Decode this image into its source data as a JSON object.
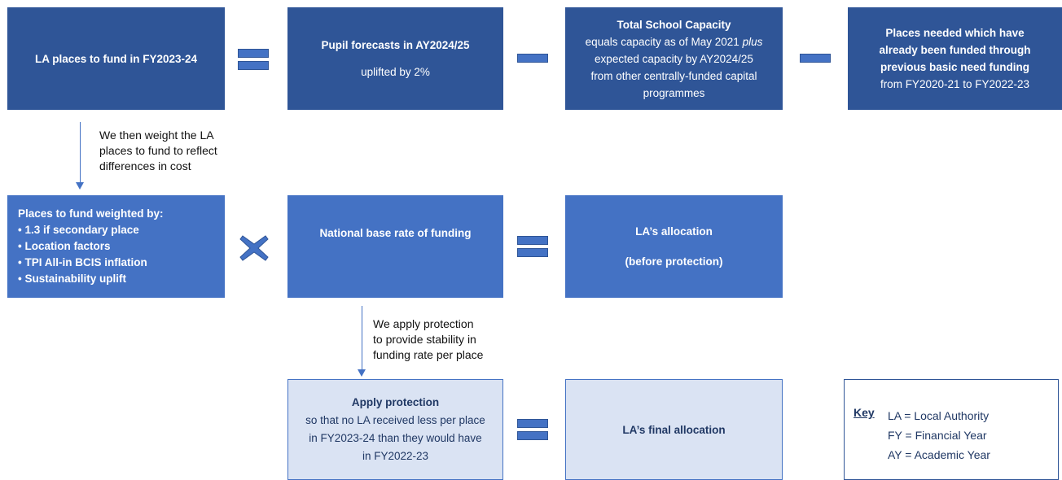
{
  "nodes": [
    {
      "title": "LA places to fund in FY2023-24"
    },
    {
      "title": "Pupil forecasts in AY2024/25",
      "lines": [
        "uplifted by 2%"
      ]
    },
    {
      "title": "Total School Capacity",
      "lines": [
        "equals capacity as of May 2021",
        "plus",
        "expected capacity by AY2024/25",
        "from other centrally-funded capital",
        "programmes"
      ]
    },
    {
      "title": [
        "Places needed which have",
        "already been funded through",
        "previous basic need funding"
      ],
      "lines": [
        "from FY2020-21 to FY2022-23"
      ]
    },
    {
      "title": "Places to fund weighted by:",
      "bullets": [
        "1.3 if secondary place",
        "Location factors",
        "TPI All-in BCIS inflation",
        "Sustainability uplift"
      ]
    },
    {
      "title": "National base rate of funding"
    },
    {
      "title": "LA’s allocation",
      "lines": [
        "(before protection)"
      ]
    },
    {
      "title": "Apply protection",
      "lines": [
        "so that no LA received less per place",
        "in FY2023-24 than they would have",
        "in FY2022-23"
      ]
    },
    {
      "title": "LA’s final allocation"
    }
  ],
  "arrows": [
    {
      "label": [
        "We then weight the LA",
        "places to fund to reflect",
        "differences in cost"
      ]
    },
    {
      "label": [
        "We apply protection",
        "to provide stability in",
        "funding rate per place"
      ]
    }
  ],
  "key": {
    "title": "Key",
    "items": [
      "LA = Local Authority",
      "FY = Financial Year",
      "AY = Academic Year"
    ]
  }
}
